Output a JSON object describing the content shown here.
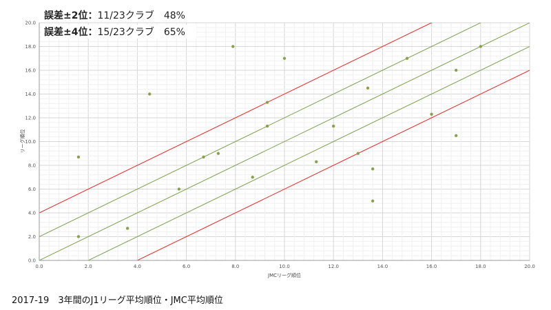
{
  "chart_data": {
    "type": "scatter",
    "title": "",
    "xlabel": "JMCリーグ順位",
    "ylabel": "リーグ順位",
    "xlim": [
      0,
      20
    ],
    "ylim": [
      0,
      20
    ],
    "x_ticks": [
      "0.0",
      "2.0",
      "4.0",
      "6.0",
      "8.0",
      "10.0",
      "12.0",
      "14.0",
      "16.0",
      "18.0",
      "20.0"
    ],
    "y_ticks": [
      "0.0",
      "2.0",
      "4.0",
      "6.0",
      "8.0",
      "10.0",
      "12.0",
      "14.0",
      "16.0",
      "18.0",
      "20.0"
    ],
    "grid": true,
    "point_color": "#8aa04a",
    "points": [
      {
        "x": 1.6,
        "y": 8.7
      },
      {
        "x": 1.6,
        "y": 2.0
      },
      {
        "x": 3.6,
        "y": 2.7
      },
      {
        "x": 4.5,
        "y": 14.0
      },
      {
        "x": 5.7,
        "y": 6.0
      },
      {
        "x": 6.7,
        "y": 8.7
      },
      {
        "x": 7.3,
        "y": 9.0
      },
      {
        "x": 7.9,
        "y": 18.0
      },
      {
        "x": 8.7,
        "y": 7.0
      },
      {
        "x": 9.3,
        "y": 13.3
      },
      {
        "x": 9.3,
        "y": 11.3
      },
      {
        "x": 10.0,
        "y": 17.0
      },
      {
        "x": 11.3,
        "y": 8.3
      },
      {
        "x": 12.0,
        "y": 11.3
      },
      {
        "x": 13.0,
        "y": 9.0
      },
      {
        "x": 13.4,
        "y": 14.5
      },
      {
        "x": 13.6,
        "y": 7.7
      },
      {
        "x": 13.6,
        "y": 5.0
      },
      {
        "x": 15.0,
        "y": 17.0
      },
      {
        "x": 16.0,
        "y": 12.3
      },
      {
        "x": 17.0,
        "y": 16.0
      },
      {
        "x": 17.0,
        "y": 10.5
      },
      {
        "x": 18.0,
        "y": 18.0
      }
    ],
    "bands": [
      {
        "offset": 4,
        "color": "#ee2222"
      },
      {
        "offset": 2,
        "color": "#7aa04a"
      },
      {
        "offset": 0,
        "color": "#7aa04a"
      },
      {
        "offset": -2,
        "color": "#7aa04a"
      },
      {
        "offset": -4,
        "color": "#ee2222"
      }
    ],
    "annotations": [
      {
        "label": "誤差±2位：",
        "value": "11/23クラブ　48%"
      },
      {
        "label": "誤差±4位：",
        "value": "15/23クラブ　65%"
      }
    ]
  },
  "caption": "2017-19　3年間のJ1リーグ平均順位・JMC平均順位"
}
